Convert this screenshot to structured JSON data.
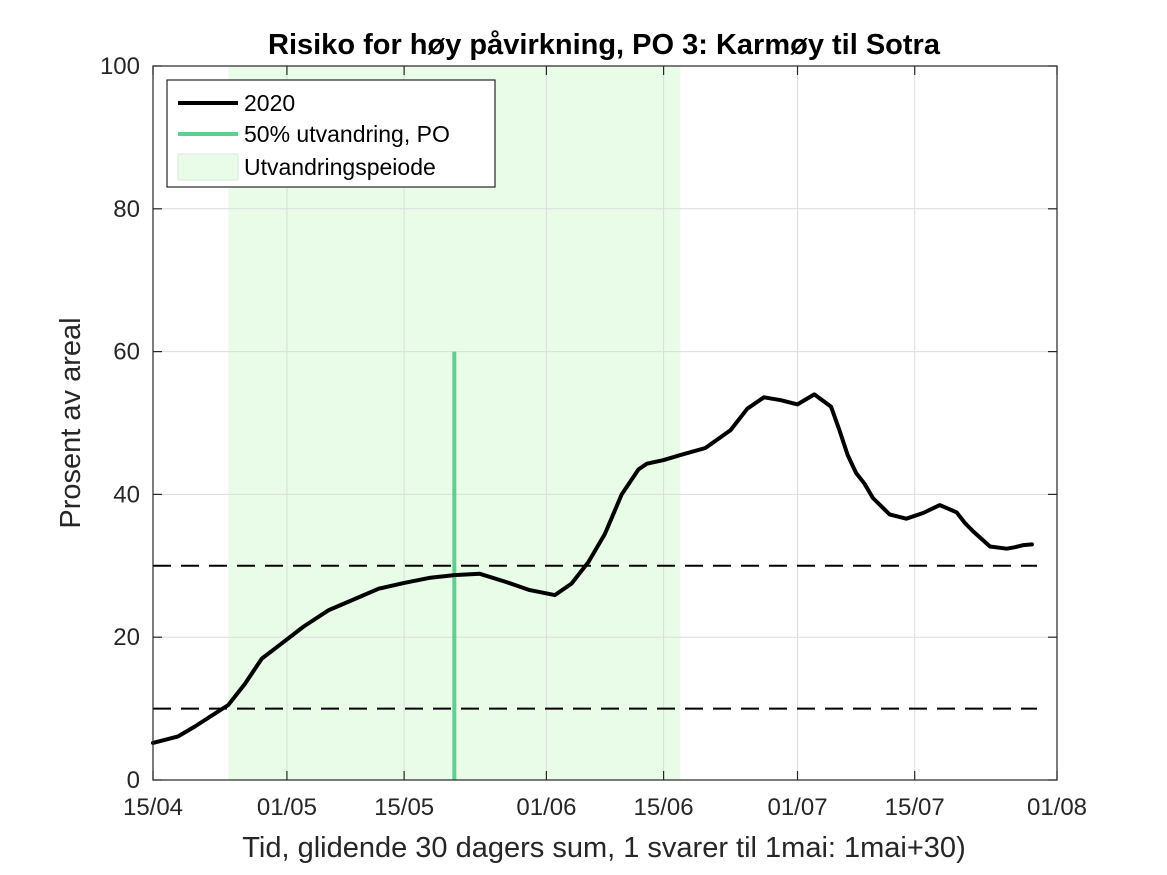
{
  "chart_data": {
    "type": "line",
    "title": "Risiko for høy påvirkning, PO 3: Karmøy til Sotra",
    "xlabel": "Tid, glidende 30 dagers sum, 1 svarer til 1mai: 1mai+30)",
    "ylabel": "Prosent av areal",
    "xlim": [
      "2020-04-15",
      "2020-08-01"
    ],
    "ylim": [
      0,
      100
    ],
    "x_ticks": [
      "2020-04-15",
      "2020-05-01",
      "2020-05-15",
      "2020-06-01",
      "2020-06-15",
      "2020-07-01",
      "2020-07-15",
      "2020-08-01"
    ],
    "x_tick_labels": [
      "15/04",
      "01/05",
      "15/05",
      "01/06",
      "15/06",
      "01/07",
      "15/07",
      "01/08"
    ],
    "y_ticks": [
      0,
      20,
      40,
      60,
      80,
      100
    ],
    "y_tick_labels": [
      "0",
      "20",
      "40",
      "60",
      "80",
      "100"
    ],
    "grid": true,
    "legend_position": "top-left",
    "colors": {
      "series": "#000000",
      "marker": "#5fcf8f",
      "period_fill": "#e8fce8",
      "grid": "#dcdcdc"
    },
    "legend": [
      {
        "label": "2020",
        "kind": "line",
        "color": "#000000"
      },
      {
        "label": "50% utvandring, PO",
        "kind": "line",
        "color": "#5fcf8f"
      },
      {
        "label": "Utvandringspeiode",
        "kind": "patch",
        "color": "#e8fce8"
      }
    ],
    "period": {
      "start": "2020-04-24",
      "end": "2020-06-17"
    },
    "vertical_marker": {
      "x": "2020-05-21",
      "y_range": [
        0,
        60
      ]
    },
    "threshold_lines": [
      10,
      30
    ],
    "series": [
      {
        "name": "2020",
        "x": [
          "2020-04-15",
          "2020-04-18",
          "2020-04-20",
          "2020-04-22",
          "2020-04-24",
          "2020-04-26",
          "2020-04-28",
          "2020-04-30",
          "2020-05-03",
          "2020-05-06",
          "2020-05-09",
          "2020-05-12",
          "2020-05-15",
          "2020-05-18",
          "2020-05-21",
          "2020-05-24",
          "2020-05-27",
          "2020-05-30",
          "2020-06-02",
          "2020-06-04",
          "2020-06-06",
          "2020-06-08",
          "2020-06-10",
          "2020-06-12",
          "2020-06-13",
          "2020-06-15",
          "2020-06-17",
          "2020-06-20",
          "2020-06-23",
          "2020-06-25",
          "2020-06-27",
          "2020-06-29",
          "2020-07-01",
          "2020-07-03",
          "2020-07-05",
          "2020-07-06",
          "2020-07-07",
          "2020-07-08",
          "2020-07-09",
          "2020-07-10",
          "2020-07-12",
          "2020-07-14",
          "2020-07-16",
          "2020-07-18",
          "2020-07-20",
          "2020-07-21",
          "2020-07-22",
          "2020-07-24",
          "2020-07-26",
          "2020-07-27",
          "2020-07-28",
          "2020-07-29"
        ],
        "values": [
          5.2,
          6.1,
          7.5,
          9.0,
          10.5,
          13.5,
          17.0,
          18.8,
          21.5,
          23.8,
          25.3,
          26.8,
          27.6,
          28.3,
          28.7,
          28.9,
          27.8,
          26.6,
          25.9,
          27.5,
          30.5,
          34.5,
          40.0,
          43.5,
          44.3,
          44.8,
          45.5,
          46.5,
          49.0,
          52.0,
          53.6,
          53.2,
          52.6,
          54.0,
          52.3,
          49.0,
          45.5,
          43.0,
          41.5,
          39.5,
          37.2,
          36.6,
          37.4,
          38.5,
          37.5,
          36.0,
          34.8,
          32.7,
          32.4,
          32.6,
          32.9,
          33.0
        ]
      }
    ]
  }
}
